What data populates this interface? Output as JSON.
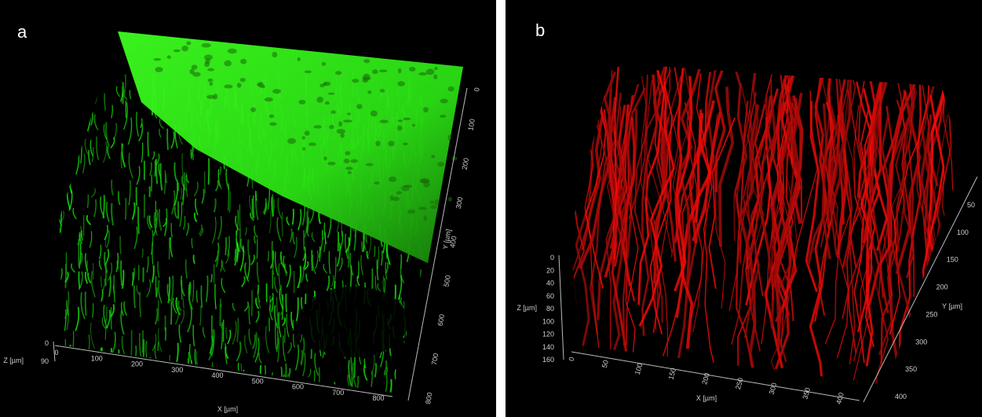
{
  "panels": [
    {
      "label": "a",
      "x_axis": {
        "title": "X [µm]",
        "ticks": [
          "0",
          "100",
          "200",
          "300",
          "400",
          "500",
          "600",
          "700",
          "800"
        ]
      },
      "y_axis": {
        "title": "Y [µm]",
        "ticks": [
          "0",
          "100",
          "200",
          "300",
          "400",
          "500",
          "600",
          "700",
          "800"
        ]
      },
      "z_axis": {
        "title": "Z [µm]",
        "ticks": [
          "0",
          "90"
        ]
      }
    },
    {
      "label": "b",
      "x_axis": {
        "title": "X [µm]",
        "ticks": [
          "0",
          "50",
          "100",
          "150",
          "200",
          "250",
          "300",
          "350",
          "400"
        ]
      },
      "y_axis": {
        "title": "Y [µm]",
        "ticks": [
          "50",
          "100",
          "150",
          "200",
          "250",
          "300",
          "350",
          "400"
        ]
      },
      "z_axis": {
        "title": "Z [µm]",
        "ticks": [
          "0",
          "20",
          "40",
          "60",
          "80",
          "100",
          "120",
          "140",
          "160"
        ]
      }
    }
  ]
}
